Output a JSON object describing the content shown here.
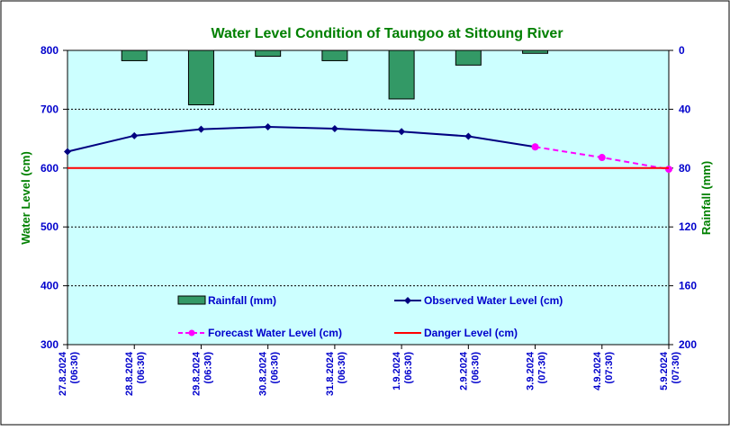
{
  "chart_data": {
    "type": "bar+line",
    "title": "Water Level Condition of Taungoo at  Sittoung River",
    "ylabel_left": "Water Level (cm)",
    "ylabel_right": "Rainfall (mm)",
    "y_left_range": [
      300,
      800
    ],
    "y_left_ticks": [
      "300",
      "400",
      "500",
      "600",
      "700",
      "800"
    ],
    "y_right_range": [
      0,
      200
    ],
    "y_right_inverted": true,
    "y_right_ticks": [
      "0",
      "40",
      "80",
      "120",
      "160",
      "200"
    ],
    "grid": "horizontal dashed",
    "categories": [
      [
        "27.8.2024",
        "(06:30)"
      ],
      [
        "28.8.2024",
        "(06:30)"
      ],
      [
        "29.8.2024",
        "(06:30)"
      ],
      [
        "30.8.2024",
        "(06:30)"
      ],
      [
        "31.8.2024",
        "(06:30)"
      ],
      [
        "1.9.2024",
        "(06:30)"
      ],
      [
        "2.9.2024",
        "(06:30)"
      ],
      [
        "3.9.2024",
        "(07:30)"
      ],
      [
        "4.9.2024",
        "(07:30)"
      ],
      [
        "5.9.2024",
        "(07:30)"
      ]
    ],
    "series": [
      {
        "name": "Rainfall (mm)",
        "type": "bar",
        "axis": "right",
        "color": "#339966",
        "values": [
          0,
          7,
          37,
          4,
          7,
          33,
          10,
          2,
          0,
          0
        ]
      },
      {
        "name": "Observed Water Level (cm)",
        "type": "line",
        "axis": "left",
        "color": "#000080",
        "values": [
          628,
          655,
          666,
          670,
          667,
          662,
          654,
          636,
          null,
          null
        ]
      },
      {
        "name": "Forecast Water Level (cm)",
        "type": "line-dashed",
        "axis": "left",
        "color": "#ff00ff",
        "values": [
          null,
          null,
          null,
          null,
          null,
          null,
          null,
          636,
          618,
          598
        ]
      },
      {
        "name": "Danger Level (cm)",
        "type": "line",
        "axis": "left",
        "color": "#ff0000",
        "values": [
          600,
          600,
          600,
          600,
          600,
          600,
          600,
          600,
          600,
          600
        ]
      }
    ],
    "legend_placement": "inside-bottom"
  },
  "colors": {
    "plot_bg": "#ccffff",
    "title": "#008000",
    "axis_label": "#008000",
    "tick_label": "#0000cc",
    "legend_text": "#0000cc"
  }
}
